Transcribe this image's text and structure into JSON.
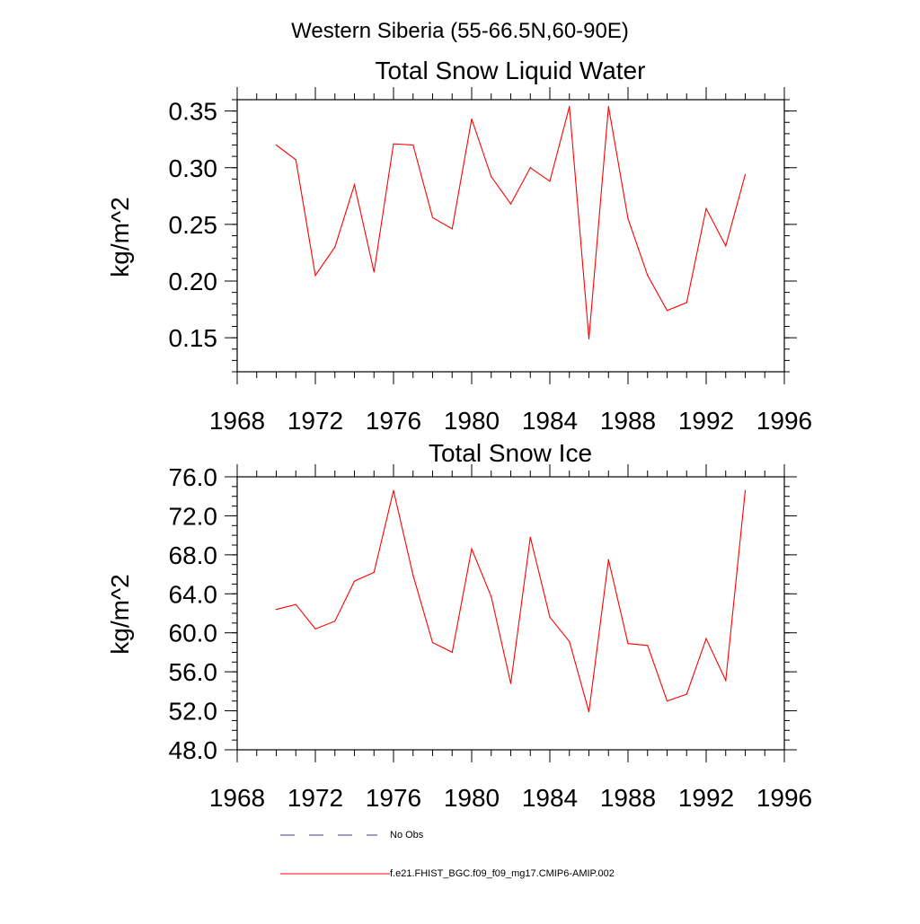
{
  "page": {
    "main_title": "Western Siberia (55-66.5N,60-90E)"
  },
  "chart_data": [
    {
      "type": "line",
      "title": "Total Snow Liquid Water",
      "ylabel": "kg/m^2",
      "xlabel": "",
      "xlim": [
        1968,
        1996
      ],
      "ylim": [
        0.12,
        0.36
      ],
      "x_major_ticks": [
        1968,
        1972,
        1976,
        1980,
        1984,
        1988,
        1992,
        1996
      ],
      "x_tick_labels": [
        "1968",
        "1972",
        "1976",
        "1980",
        "1984",
        "1988",
        "1992",
        "1996"
      ],
      "y_major_ticks": [
        0.15,
        0.2,
        0.25,
        0.3,
        0.35
      ],
      "y_tick_labels": [
        "0.15",
        "0.20",
        "0.25",
        "0.30",
        "0.35"
      ],
      "y_minor_step": 0.01,
      "grid": false,
      "series": [
        {
          "name": "f.e21.FHIST_BGC.f09_f09_mg17.CMIP6-AMIP.002",
          "color": "#ff0000",
          "x": [
            1970,
            1971,
            1972,
            1973,
            1974,
            1975,
            1976,
            1977,
            1978,
            1979,
            1980,
            1981,
            1982,
            1983,
            1984,
            1985,
            1986,
            1987,
            1988,
            1989,
            1990,
            1991,
            1992,
            1993,
            1994
          ],
          "values": [
            0.32,
            0.307,
            0.205,
            0.23,
            0.285,
            0.208,
            0.321,
            0.32,
            0.256,
            0.246,
            0.343,
            0.292,
            0.268,
            0.3,
            0.288,
            0.354,
            0.149,
            0.354,
            0.255,
            0.205,
            0.174,
            0.181,
            0.264,
            0.231,
            0.294
          ]
        }
      ]
    },
    {
      "type": "line",
      "title": "Total Snow Ice",
      "ylabel": "kg/m^2",
      "xlabel": "",
      "xlim": [
        1968,
        1996
      ],
      "ylim": [
        48.0,
        76.0
      ],
      "x_major_ticks": [
        1968,
        1972,
        1976,
        1980,
        1984,
        1988,
        1992,
        1996
      ],
      "x_tick_labels": [
        "1968",
        "1972",
        "1976",
        "1980",
        "1984",
        "1988",
        "1992",
        "1996"
      ],
      "y_major_ticks": [
        48.0,
        52.0,
        56.0,
        60.0,
        64.0,
        68.0,
        72.0,
        76.0
      ],
      "y_tick_labels": [
        "48.0",
        "52.0",
        "56.0",
        "60.0",
        "64.0",
        "68.0",
        "72.0",
        "76.0"
      ],
      "y_minor_step": 1.0,
      "grid": false,
      "series": [
        {
          "name": "f.e21.FHIST_BGC.f09_f09_mg17.CMIP6-AMIP.002",
          "color": "#ff0000",
          "x": [
            1970,
            1971,
            1972,
            1973,
            1974,
            1975,
            1976,
            1977,
            1978,
            1979,
            1980,
            1981,
            1982,
            1983,
            1984,
            1985,
            1986,
            1987,
            1988,
            1989,
            1990,
            1991,
            1992,
            1993,
            1994
          ],
          "values": [
            62.4,
            62.9,
            60.4,
            61.2,
            65.3,
            66.2,
            74.6,
            65.9,
            59.0,
            58.0,
            68.6,
            63.7,
            54.8,
            69.8,
            61.6,
            59.1,
            51.9,
            67.5,
            58.9,
            58.7,
            53.0,
            53.7,
            59.4,
            55.1,
            74.6
          ]
        }
      ]
    }
  ],
  "legend": {
    "position": "bottom",
    "items": [
      {
        "label": "No Obs",
        "color": "#3b3b8f",
        "style": "dashed"
      },
      {
        "label": "f.e21.FHIST_BGC.f09_f09_mg17.CMIP6-AMIP.002",
        "color": "#ff0000",
        "style": "solid"
      }
    ]
  }
}
